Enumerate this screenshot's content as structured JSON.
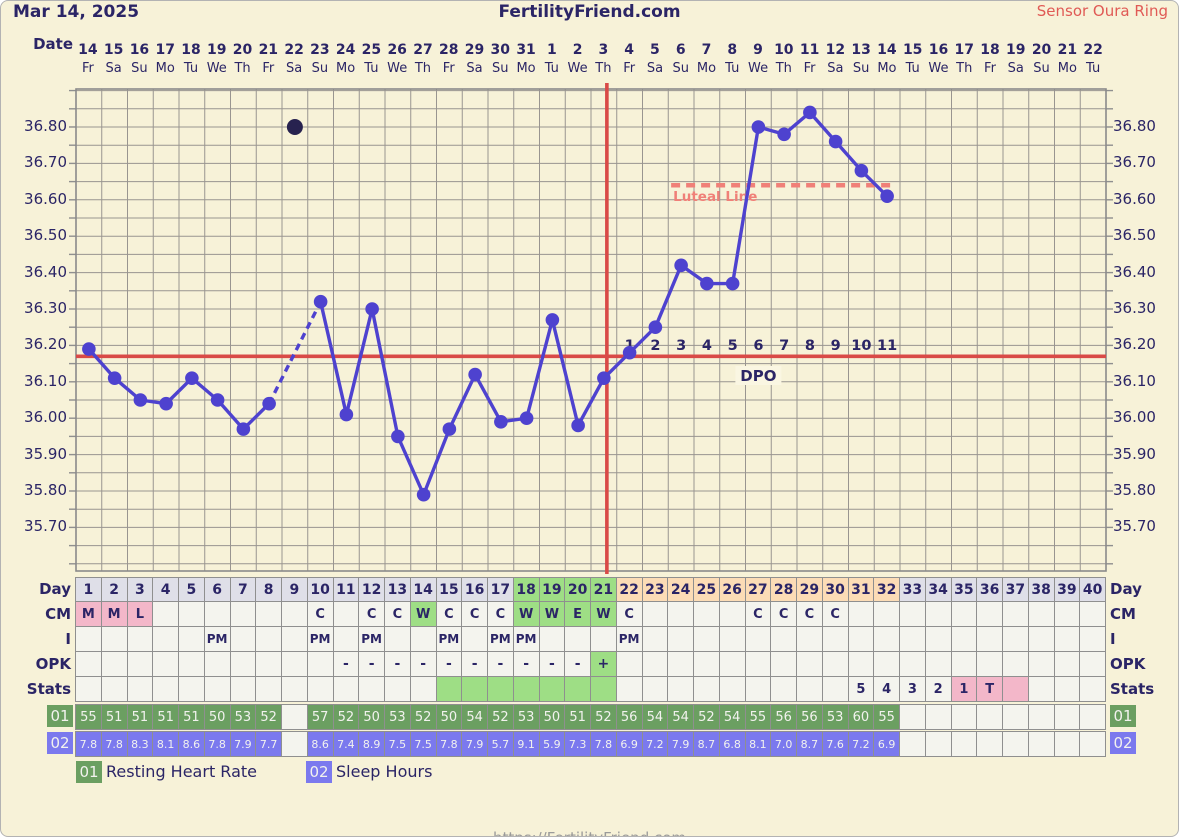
{
  "header": {
    "date": "Mar 14, 2025",
    "site": "FertilityFriend.com",
    "sensor": "Sensor Oura Ring"
  },
  "axis": {
    "date_label": "Date",
    "dates": [
      14,
      15,
      16,
      17,
      18,
      19,
      20,
      21,
      22,
      23,
      24,
      25,
      26,
      27,
      28,
      29,
      30,
      31,
      1,
      2,
      3,
      4,
      5,
      6,
      7,
      8,
      9,
      10,
      11,
      12,
      13,
      14,
      15,
      16,
      17,
      18,
      19,
      20,
      21,
      22
    ],
    "weekdays": [
      "Fr",
      "Sa",
      "Su",
      "Mo",
      "Tu",
      "We",
      "Th",
      "Fr",
      "Sa",
      "Su",
      "Mo",
      "Tu",
      "We",
      "Th",
      "Fr",
      "Sa",
      "Su",
      "Mo",
      "Tu",
      "We",
      "Th",
      "Fr",
      "Sa",
      "Su",
      "Mo",
      "Tu",
      "We",
      "Th",
      "Fr",
      "Sa",
      "Su",
      "Mo",
      "Tu",
      "We",
      "Th",
      "Fr",
      "Sa",
      "Su",
      "Mo",
      "Tu"
    ],
    "y_labels": [
      "36.80",
      "36.70",
      "36.60",
      "36.50",
      "36.40",
      "36.30",
      "36.20",
      "36.10",
      "36.00",
      "35.90",
      "35.80",
      "35.70"
    ]
  },
  "chart_data": {
    "type": "line",
    "title": "Basal body temperature cycle chart",
    "x_days": [
      1,
      2,
      3,
      4,
      5,
      6,
      7,
      8,
      9,
      10,
      11,
      12,
      13,
      14,
      15,
      16,
      17,
      18,
      19,
      20,
      21,
      22,
      23,
      24,
      25,
      26,
      27,
      28,
      29,
      30,
      31,
      32,
      33,
      34,
      35,
      36,
      37,
      38,
      39,
      40
    ],
    "series": [
      {
        "name": "BBT",
        "values": [
          36.19,
          36.11,
          36.05,
          36.04,
          36.11,
          36.05,
          35.97,
          36.04,
          null,
          36.32,
          36.01,
          36.3,
          35.95,
          35.79,
          35.97,
          36.12,
          35.99,
          36.0,
          36.27,
          35.98,
          36.11,
          36.18,
          36.25,
          36.42,
          36.37,
          36.37,
          36.8,
          36.78,
          36.84,
          36.76,
          36.68,
          36.61,
          null,
          null,
          null,
          null,
          null,
          null,
          null,
          null
        ]
      }
    ],
    "discarded_point": {
      "day": 9,
      "temp": 36.8
    },
    "dashed_segment_days": [
      8,
      10
    ],
    "coverline": 36.17,
    "ovulation_day": 21,
    "luteal_line": {
      "value": 36.64,
      "label": "Luteal Line",
      "start_day": 24,
      "end_day": 32
    },
    "dpo": {
      "caption": "DPO",
      "start_day": 22,
      "labels": [
        "1",
        "2",
        "3",
        "4",
        "5",
        "6",
        "7",
        "8",
        "9",
        "10",
        "11"
      ]
    },
    "ylim": [
      35.58,
      36.9
    ],
    "grid_step": 0.05
  },
  "table": {
    "row_labels": {
      "day": "Day",
      "cm": "CM",
      "i": "I",
      "opk": "OPK",
      "stats": "Stats",
      "hr": "01",
      "sleep": "02"
    },
    "day_green": [
      18,
      19,
      20,
      21
    ],
    "day_peach": [
      22,
      23,
      24,
      25,
      26,
      27,
      28,
      29,
      30,
      31,
      32
    ],
    "cm": {
      "1": [
        "M",
        "pink"
      ],
      "2": [
        "M",
        "pink"
      ],
      "3": [
        "L",
        "pink"
      ],
      "10": [
        "C",
        ""
      ],
      "12": [
        "C",
        ""
      ],
      "13": [
        "C",
        ""
      ],
      "14": [
        "W",
        "green"
      ],
      "15": [
        "C",
        ""
      ],
      "16": [
        "C",
        ""
      ],
      "17": [
        "C",
        ""
      ],
      "18": [
        "W",
        "green"
      ],
      "19": [
        "W",
        "green"
      ],
      "20": [
        "E",
        "green"
      ],
      "21": [
        "W",
        "green"
      ],
      "22": [
        "C",
        ""
      ],
      "27": [
        "C",
        ""
      ],
      "28": [
        "C",
        ""
      ],
      "29": [
        "C",
        ""
      ],
      "30": [
        "C",
        ""
      ]
    },
    "i": {
      "6": "PM",
      "10": "PM",
      "12": "PM",
      "15": "PM",
      "17": "PM",
      "18": "PM",
      "22": "PM"
    },
    "opk": {
      "11": [
        "-",
        ""
      ],
      "12": [
        "-",
        ""
      ],
      "13": [
        "-",
        ""
      ],
      "14": [
        "-",
        ""
      ],
      "15": [
        "-",
        ""
      ],
      "16": [
        "-",
        ""
      ],
      "17": [
        "-",
        ""
      ],
      "18": [
        "-",
        ""
      ],
      "19": [
        "-",
        ""
      ],
      "20": [
        "-",
        ""
      ],
      "21": [
        "+",
        "green"
      ]
    },
    "stats": {
      "15": [
        "",
        "green"
      ],
      "16": [
        "",
        "green"
      ],
      "17": [
        "",
        "green"
      ],
      "18": [
        "",
        "green"
      ],
      "19": [
        "",
        "green"
      ],
      "20": [
        "",
        "green"
      ],
      "21": [
        "",
        "green"
      ],
      "31": [
        "5",
        ""
      ],
      "32": [
        "4",
        ""
      ],
      "33": [
        "3",
        ""
      ],
      "34": [
        "2",
        ""
      ],
      "35": [
        "1",
        "pink"
      ],
      "36": [
        "T",
        "pink"
      ],
      "37": [
        "",
        "pink"
      ]
    },
    "hr": [
      "55",
      "51",
      "51",
      "51",
      "51",
      "50",
      "53",
      "52",
      "",
      "57",
      "52",
      "50",
      "53",
      "52",
      "50",
      "54",
      "52",
      "53",
      "50",
      "51",
      "52",
      "56",
      "54",
      "54",
      "52",
      "54",
      "55",
      "56",
      "56",
      "53",
      "60",
      "55",
      "",
      "",
      "",
      "",
      "",
      "",
      "",
      ""
    ],
    "sleep": [
      "7.8",
      "7.8",
      "8.3",
      "8.1",
      "8.6",
      "7.8",
      "7.9",
      "7.7",
      "",
      "8.6",
      "7.4",
      "8.9",
      "7.5",
      "7.5",
      "7.8",
      "7.9",
      "5.7",
      "9.1",
      "5.9",
      "7.3",
      "7.8",
      "6.9",
      "7.2",
      "7.9",
      "8.7",
      "6.8",
      "8.1",
      "7.0",
      "8.7",
      "7.6",
      "7.2",
      "6.9",
      "",
      "",
      "",
      "",
      "",
      "",
      "",
      ""
    ]
  },
  "legend": {
    "hr_code": "01",
    "hr_label": "Resting Heart Rate",
    "sleep_code": "02",
    "sleep_label": "Sleep Hours"
  },
  "footer": {
    "url": "https://FertilityFriend.com"
  },
  "colors": {
    "background": "#f7f2d8",
    "navy": "#2b2566",
    "line": "#4e42cf",
    "discarded_dot": "#27224f",
    "red_line": "#d94a47",
    "luteal": "#f08078",
    "grid": "#999590",
    "green": "#9ede85",
    "peach": "#fcdcb6",
    "pink": "#f3b7c9",
    "hr_green": "#6b9f61",
    "sleep_blue": "#7b79ee",
    "day_grey": "#dfdfe8"
  }
}
